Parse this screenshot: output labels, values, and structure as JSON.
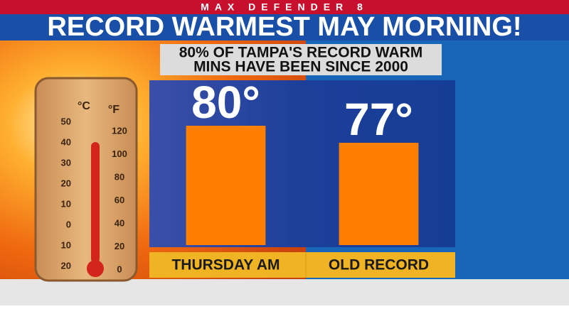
{
  "header": {
    "banner": "MAX DEFENDER 8",
    "title": "RECORD WARMEST MAY MORNING!"
  },
  "thermometer": {
    "celsius_label": "°C",
    "fahrenheit_label": "°F",
    "celsius_ticks": [
      "50",
      "40",
      "30",
      "20",
      "10",
      "0",
      "10",
      "20"
    ],
    "fahrenheit_ticks": [
      "120",
      "100",
      "80",
      "60",
      "40",
      "20",
      "0"
    ]
  },
  "chart_data": {
    "type": "bar",
    "title_lines": [
      "80% OF TAMPA'S RECORD WARM",
      "MINS HAVE BEEN SINCE 2000"
    ],
    "categories": [
      "THURSDAY AM",
      "OLD RECORD"
    ],
    "values": [
      80,
      77
    ],
    "value_labels": [
      "80°",
      "77°"
    ],
    "color": "#ff7f00",
    "ylim": [
      59,
      88
    ]
  }
}
